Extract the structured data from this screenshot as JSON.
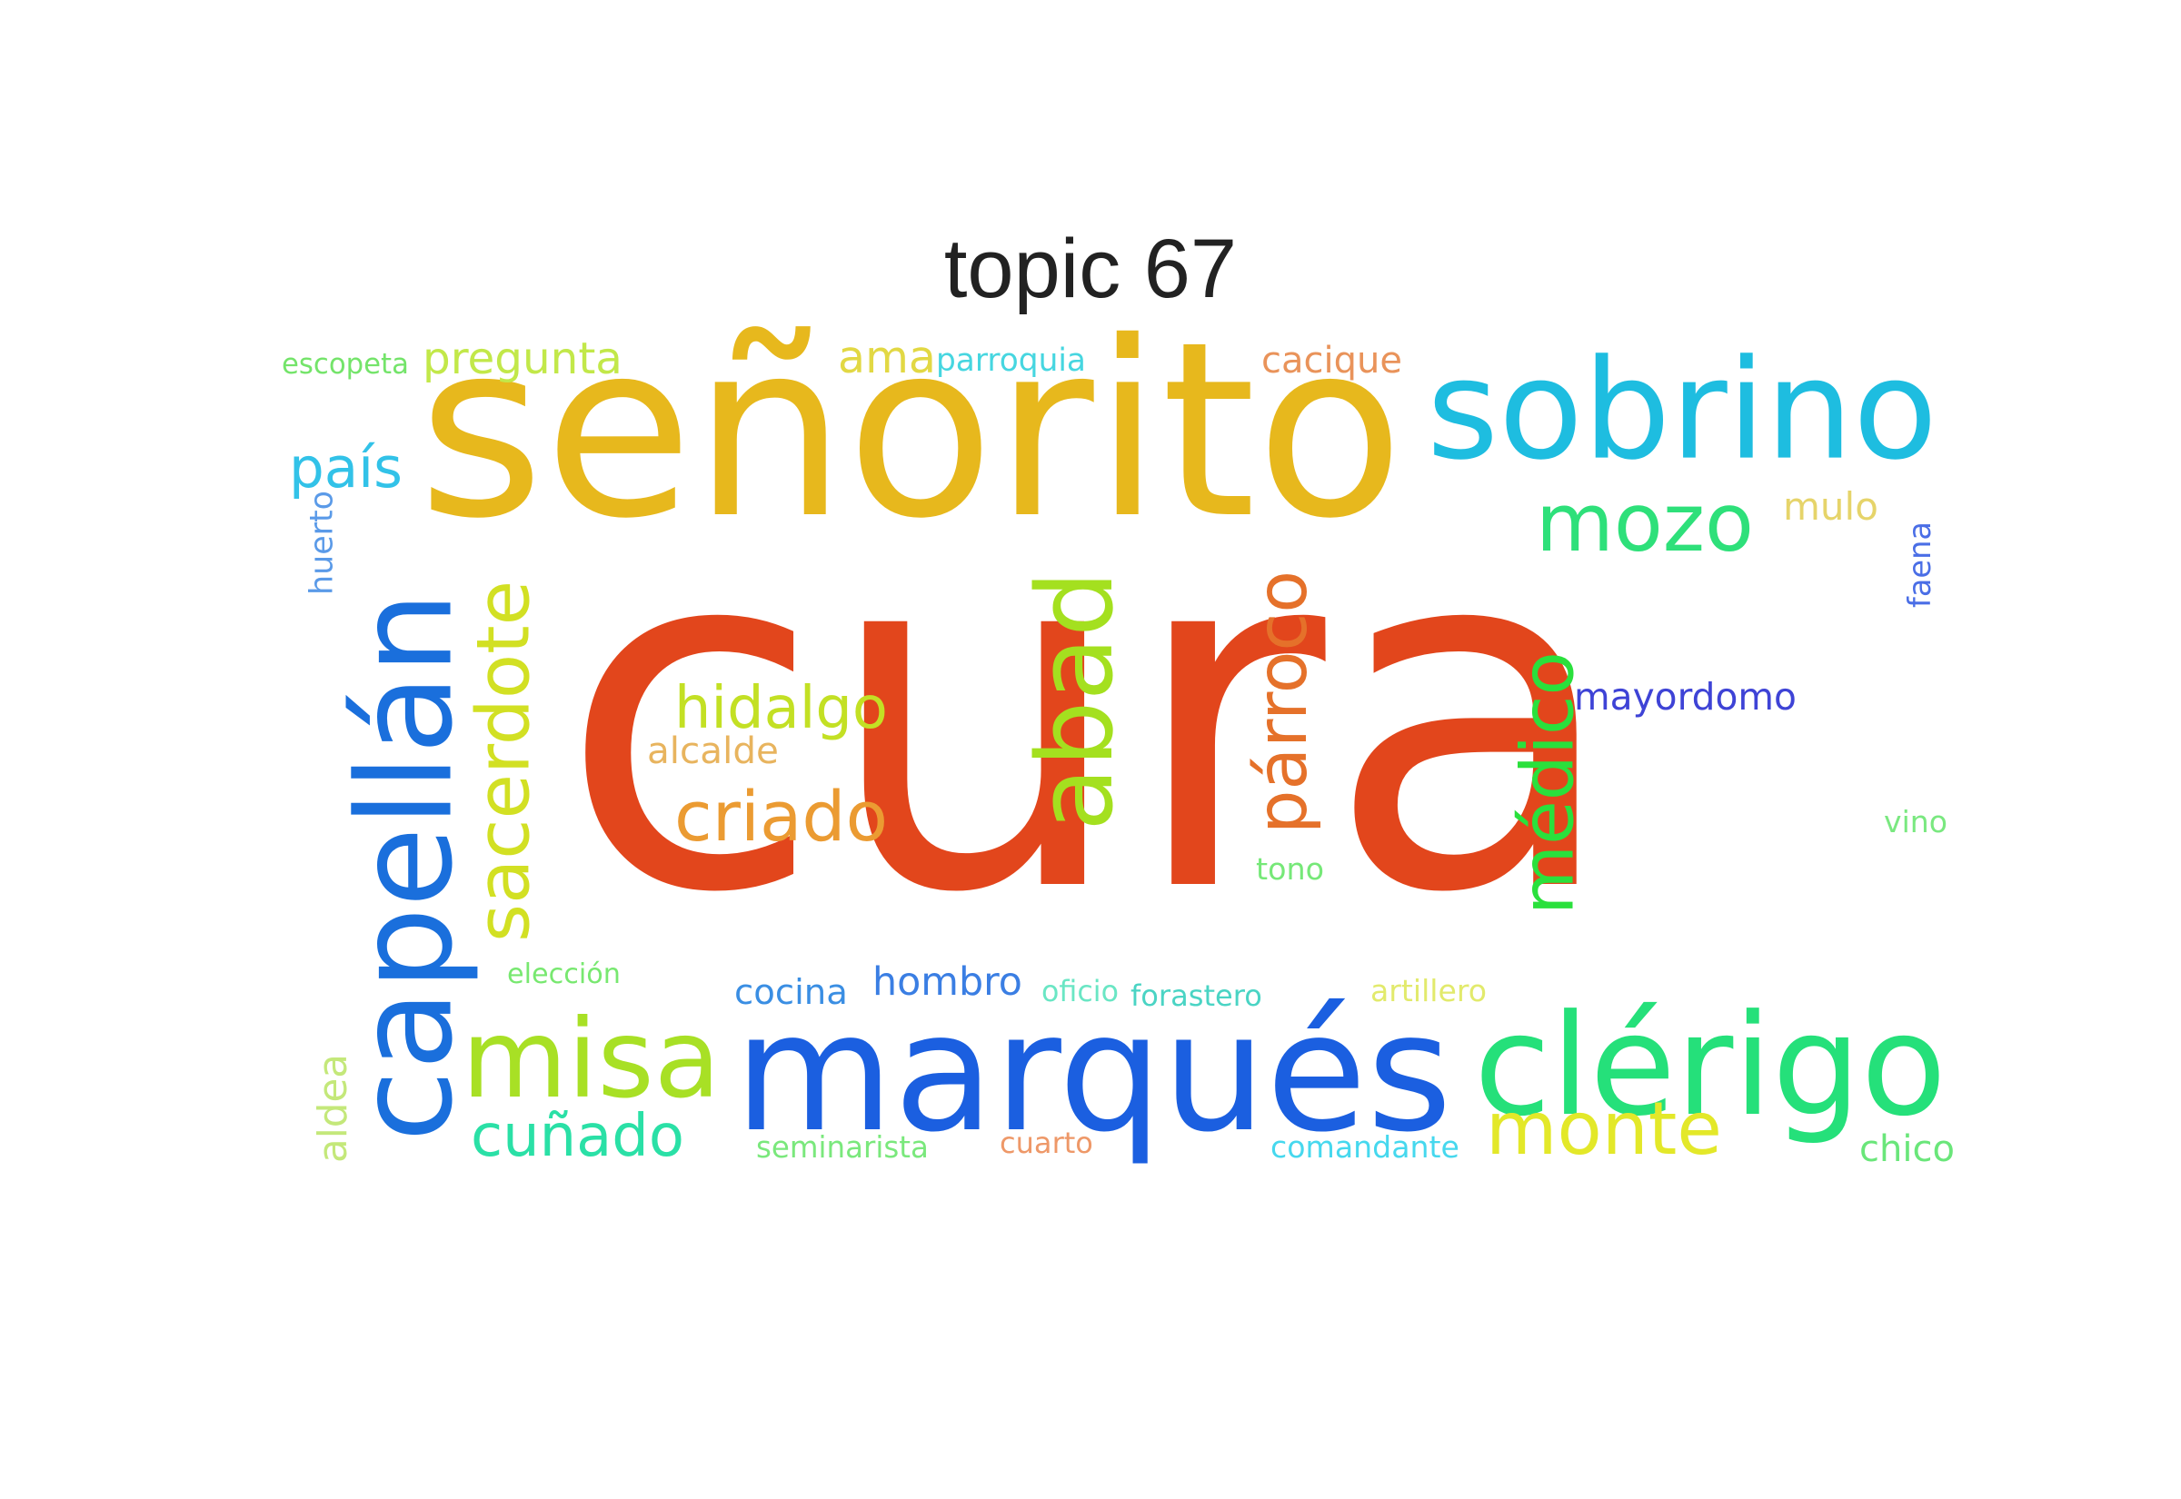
{
  "chart_data": {
    "type": "wordcloud",
    "title": "topic 67",
    "words": [
      {
        "text": "cura",
        "weight": 100,
        "color": "#e2461c"
      },
      {
        "text": "señorito",
        "weight": 42,
        "color": "#e7b81d"
      },
      {
        "text": "sobrino",
        "weight": 30,
        "color": "#1ebde0"
      },
      {
        "text": "capellán",
        "weight": 30,
        "color": "#1a6fdc"
      },
      {
        "text": "marqués",
        "weight": 30,
        "color": "#1b5fe0"
      },
      {
        "text": "clérigo",
        "weight": 28,
        "color": "#25e07a"
      },
      {
        "text": "misa",
        "weight": 24,
        "color": "#a8e025"
      },
      {
        "text": "abad",
        "weight": 22,
        "color": "#a4e01f"
      },
      {
        "text": "sacerdote",
        "weight": 18,
        "color": "#d2e023"
      },
      {
        "text": "párroco",
        "weight": 16,
        "color": "#e5712a"
      },
      {
        "text": "médico",
        "weight": 16,
        "color": "#2ae03c"
      },
      {
        "text": "mozo",
        "weight": 15,
        "color": "#2ee07a"
      },
      {
        "text": "monte",
        "weight": 15,
        "color": "#e3e829"
      },
      {
        "text": "hidalgo",
        "weight": 13,
        "color": "#c3e024"
      },
      {
        "text": "criado",
        "weight": 13,
        "color": "#eb9b32"
      },
      {
        "text": "cuñado",
        "weight": 13,
        "color": "#2ae0a6"
      },
      {
        "text": "país",
        "weight": 11,
        "color": "#32c2e8"
      },
      {
        "text": "pregunta",
        "weight": 10,
        "color": "#c2e849"
      },
      {
        "text": "ama",
        "weight": 9,
        "color": "#e2d844"
      },
      {
        "text": "cacique",
        "weight": 8,
        "color": "#e9935a"
      },
      {
        "text": "mayordomo",
        "weight": 8,
        "color": "#3e43d6"
      },
      {
        "text": "hombro",
        "weight": 8,
        "color": "#3a7ee3"
      },
      {
        "text": "cocina",
        "weight": 8,
        "color": "#3a8ee3"
      },
      {
        "text": "alcalde",
        "weight": 7,
        "color": "#e8b45e"
      },
      {
        "text": "mulo",
        "weight": 7,
        "color": "#e6d46a"
      },
      {
        "text": "parroquia",
        "weight": 6,
        "color": "#46d6e0"
      },
      {
        "text": "escopeta",
        "weight": 6,
        "color": "#74e46a"
      },
      {
        "text": "chico",
        "weight": 6,
        "color": "#6ae67a"
      },
      {
        "text": "forastero",
        "weight": 6,
        "color": "#4ad4c4"
      },
      {
        "text": "oficio",
        "weight": 6,
        "color": "#6ae6c4"
      },
      {
        "text": "elección",
        "weight": 6,
        "color": "#78e870"
      },
      {
        "text": "artillero",
        "weight": 6,
        "color": "#e2ea6c"
      },
      {
        "text": "tono",
        "weight": 6,
        "color": "#76e878"
      },
      {
        "text": "vino",
        "weight": 6,
        "color": "#7ae880"
      },
      {
        "text": "comandante",
        "weight": 6,
        "color": "#46d8ee"
      },
      {
        "text": "seminarista",
        "weight": 6,
        "color": "#7ae87c"
      },
      {
        "text": "cuarto",
        "weight": 6,
        "color": "#ee9868"
      },
      {
        "text": "huerto",
        "weight": 5,
        "color": "#5a9ae8"
      },
      {
        "text": "faena",
        "weight": 5,
        "color": "#4a6ee6"
      },
      {
        "text": "aldea",
        "weight": 5,
        "color": "#c4e87a"
      }
    ]
  }
}
